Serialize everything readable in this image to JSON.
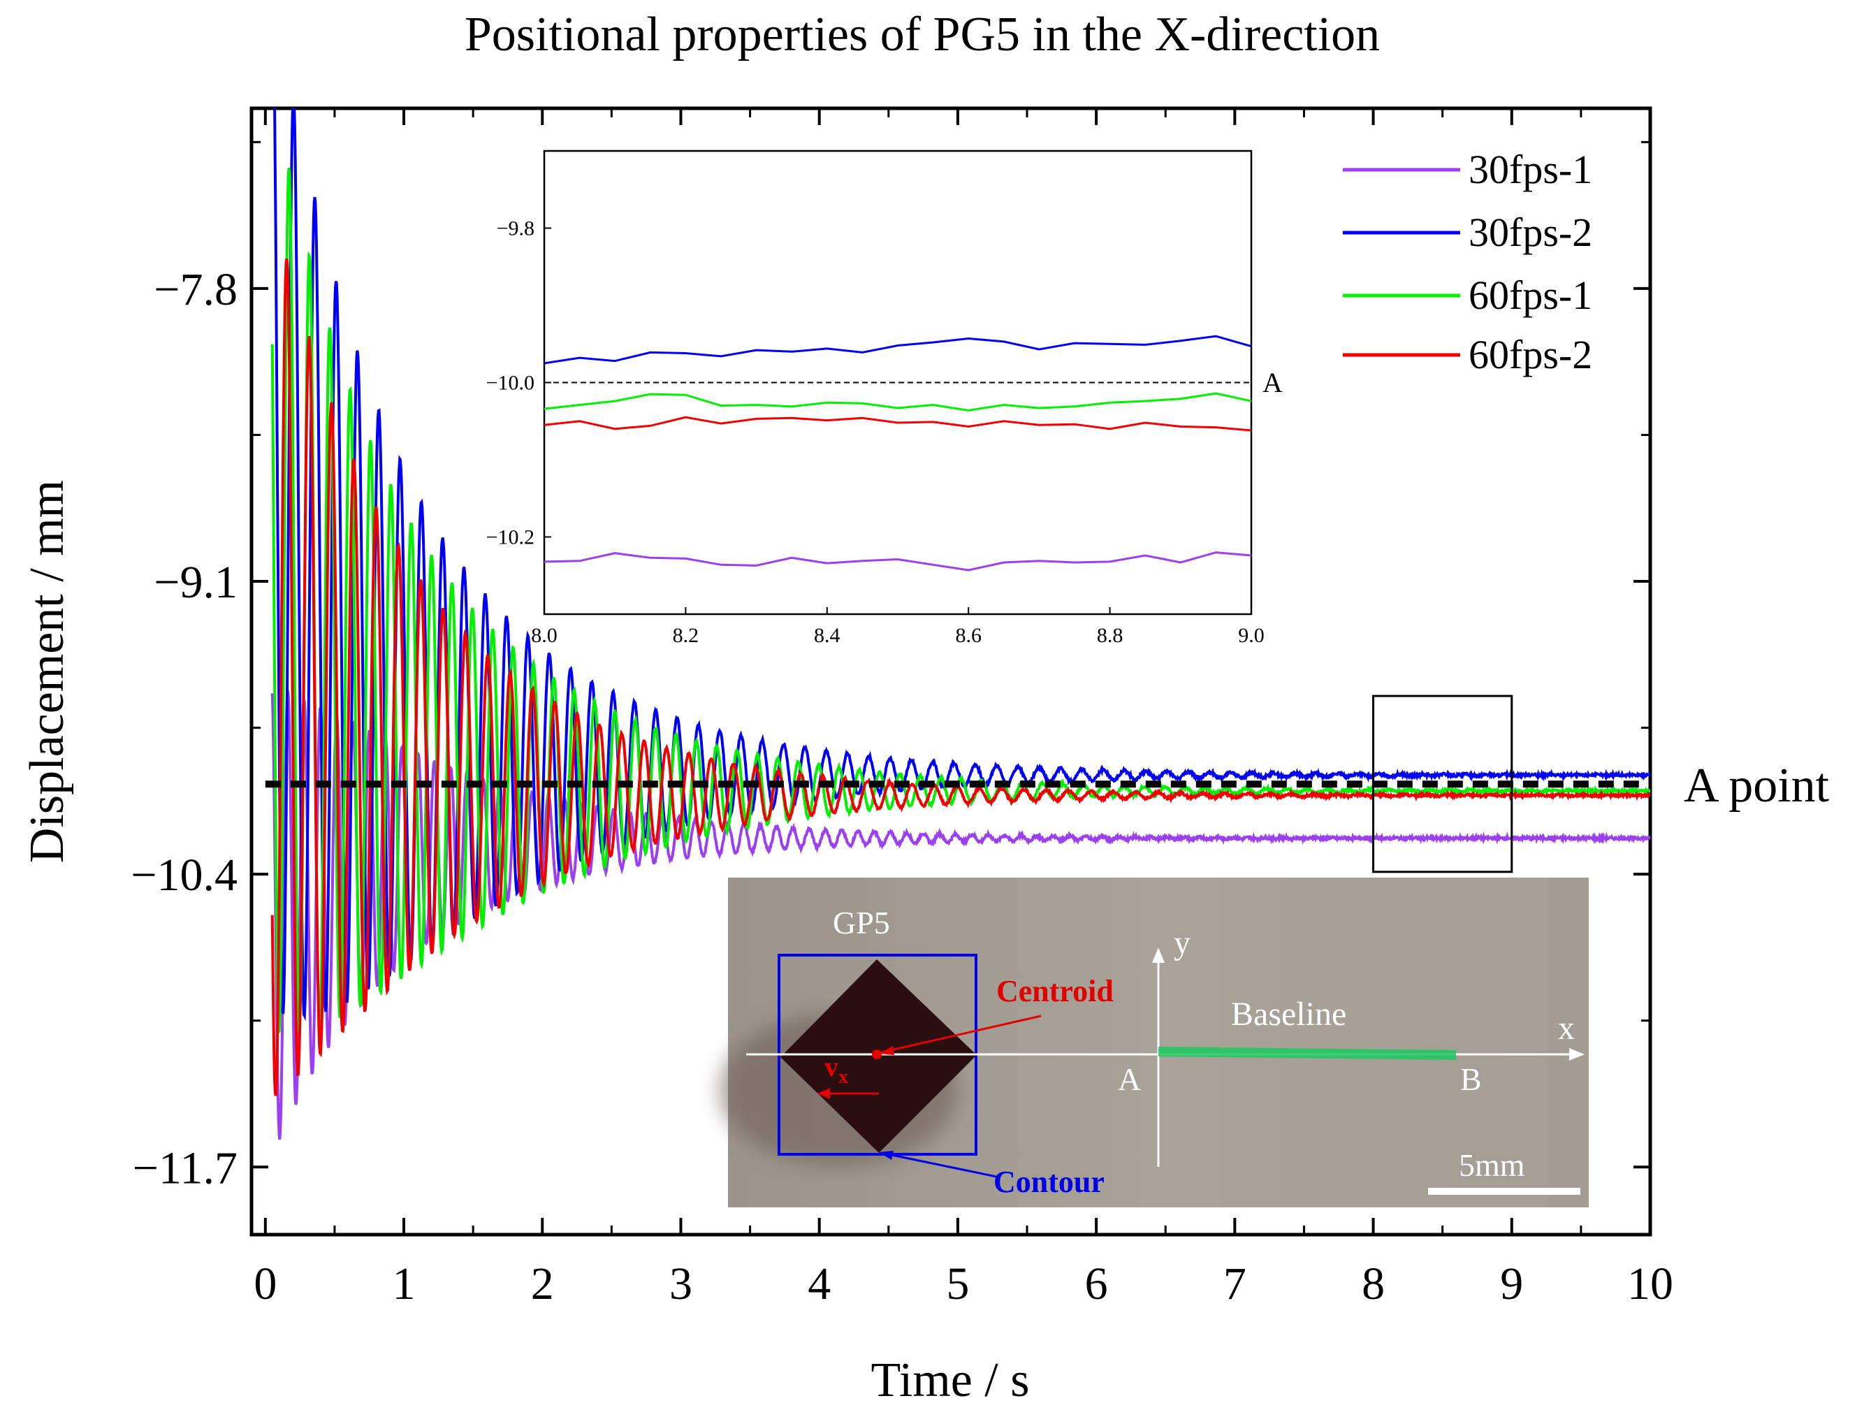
{
  "title": "Positional properties of PG5 in the X-direction",
  "chart_data": [
    {
      "type": "line",
      "title": "Positional properties of PG5 in the X-direction",
      "xlabel": "Time / s",
      "ylabel": "Displacement / mm",
      "xlim": [
        -0.1,
        10
      ],
      "ylim": [
        -12.0,
        -7.0
      ],
      "xticks": [
        0,
        1,
        2,
        3,
        4,
        5,
        6,
        7,
        8,
        9,
        10
      ],
      "xtick_labels": [
        "0",
        "1",
        "2",
        "3",
        "4",
        "5",
        "6",
        "7",
        "8",
        "9",
        "10"
      ],
      "yticks": [
        -7.8,
        -9.1,
        -10.4,
        -11.7
      ],
      "ytick_labels": [
        "−7.8",
        "−9.1",
        "−10.4",
        "−11.7"
      ],
      "legend": "top-right",
      "grid": false,
      "series": [
        {
          "name": "30fps-1",
          "color": "#9B3FF0",
          "x": [
            0.05,
            9,
            10
          ],
          "y": [
            -10.6,
            -10.24,
            -10.24
          ],
          "osc": {
            "start": 0.05,
            "amp": 1.05,
            "tau": 1.2,
            "freq": 8.5,
            "phase": 0.3,
            "floor": 0.012
          }
        },
        {
          "name": "30fps-2",
          "color": "#0000F5",
          "x": [
            0.05,
            9,
            10
          ],
          "y": [
            -8.7,
            -9.96,
            -9.96
          ],
          "osc": {
            "start": 0.05,
            "amp": 2.3,
            "tau": 1.3,
            "freq": 6.5,
            "phase": 0.0,
            "floor": 0.012
          }
        },
        {
          "name": "60fps-1",
          "color": "#00F000",
          "x": [
            0.05,
            9,
            10
          ],
          "y": [
            -9.0,
            -10.03,
            -10.03
          ],
          "osc": {
            "start": 0.05,
            "amp": 2.1,
            "tau": 1.35,
            "freq": 6.8,
            "phase": 1.1,
            "floor": 0.01
          }
        },
        {
          "name": "60fps-2",
          "color": "#F00000",
          "x": [
            0.05,
            9,
            10
          ],
          "y": [
            -9.4,
            -10.05,
            -10.05
          ],
          "osc": {
            "start": 0.05,
            "amp": 2.0,
            "tau": 1.25,
            "freq": 6.2,
            "phase": 2.2,
            "floor": 0.01
          }
        }
      ],
      "reference_line": {
        "y": -10.0,
        "label": "A point",
        "style": "dashed",
        "color": "#000000"
      },
      "zoom_box": {
        "x": [
          8,
          9
        ],
        "y": [
          -10.25,
          -9.95
        ]
      }
    },
    {
      "type": "line",
      "xlim": [
        8.0,
        9.0
      ],
      "ylim": [
        -10.3,
        -9.7
      ],
      "xticks": [
        8.0,
        8.2,
        8.4,
        8.6,
        8.8,
        9.0
      ],
      "xtick_labels": [
        "8.0",
        "8.2",
        "8.4",
        "8.6",
        "8.8",
        "9.0"
      ],
      "yticks": [
        -9.8,
        -10.0,
        -10.2
      ],
      "ytick_labels": [
        "−9.8",
        "−10.0",
        "−10.2"
      ],
      "reference_line": {
        "y": -10.0,
        "label": "A",
        "style": "dashed"
      },
      "series": [
        {
          "name": "30fps-1",
          "color": "#9B3FF0",
          "x": [
            8.0,
            8.05,
            8.1,
            8.15,
            8.2,
            8.25,
            8.3,
            8.35,
            8.4,
            8.45,
            8.5,
            8.55,
            8.6,
            8.65,
            8.7,
            8.75,
            8.8,
            8.85,
            8.9,
            8.95,
            9.0
          ],
          "y": [
            -10.232,
            -10.231,
            -10.221,
            -10.227,
            -10.228,
            -10.236,
            -10.237,
            -10.227,
            -10.234,
            -10.231,
            -10.229,
            -10.236,
            -10.243,
            -10.233,
            -10.231,
            -10.233,
            -10.232,
            -10.224,
            -10.233,
            -10.22,
            -10.224
          ]
        },
        {
          "name": "30fps-2",
          "color": "#0000F5",
          "x": [
            8.0,
            8.05,
            8.1,
            8.15,
            8.2,
            8.25,
            8.3,
            8.35,
            8.4,
            8.45,
            8.5,
            8.55,
            8.6,
            8.65,
            8.7,
            8.75,
            8.8,
            8.85,
            8.9,
            8.95,
            9.0
          ],
          "y": [
            -9.975,
            -9.968,
            -9.972,
            -9.961,
            -9.962,
            -9.966,
            -9.958,
            -9.96,
            -9.956,
            -9.961,
            -9.952,
            -9.948,
            -9.943,
            -9.947,
            -9.957,
            -9.949,
            -9.95,
            -9.951,
            -9.946,
            -9.94,
            -9.953
          ]
        },
        {
          "name": "60fps-1",
          "color": "#00F000",
          "x": [
            8.0,
            8.05,
            8.1,
            8.15,
            8.2,
            8.25,
            8.3,
            8.35,
            8.4,
            8.45,
            8.5,
            8.55,
            8.6,
            8.65,
            8.7,
            8.75,
            8.8,
            8.85,
            8.9,
            8.95,
            9.0
          ],
          "y": [
            -10.034,
            -10.029,
            -10.024,
            -10.015,
            -10.016,
            -10.03,
            -10.029,
            -10.031,
            -10.026,
            -10.027,
            -10.033,
            -10.029,
            -10.036,
            -10.029,
            -10.033,
            -10.031,
            -10.026,
            -10.024,
            -10.021,
            -10.014,
            -10.024
          ]
        },
        {
          "name": "60fps-2",
          "color": "#F00000",
          "x": [
            8.0,
            8.05,
            8.1,
            8.15,
            8.2,
            8.25,
            8.3,
            8.35,
            8.4,
            8.45,
            8.5,
            8.55,
            8.6,
            8.65,
            8.7,
            8.75,
            8.8,
            8.85,
            8.9,
            8.95,
            9.0
          ],
          "y": [
            -10.055,
            -10.05,
            -10.06,
            -10.056,
            -10.045,
            -10.053,
            -10.047,
            -10.046,
            -10.049,
            -10.046,
            -10.052,
            -10.051,
            -10.057,
            -10.05,
            -10.055,
            -10.054,
            -10.06,
            -10.052,
            -10.057,
            -10.058,
            -10.062
          ]
        }
      ]
    }
  ],
  "photo_inset": {
    "label_gp5": "GP5",
    "label_y": "y",
    "label_x": "x",
    "label_centroid": "Centroid",
    "label_contour": "Contour",
    "label_baseline": "Baseline",
    "label_a": "A",
    "label_b": "B",
    "label_vx": "v",
    "label_vx_sub": "x",
    "label_scale": "5mm",
    "colors": {
      "background": "#A7A198",
      "marker": "#2A0E10",
      "contour": "#0000E6",
      "centroid": "#E00000",
      "baseline": "#1EC860",
      "axis": "#ffffff"
    }
  }
}
